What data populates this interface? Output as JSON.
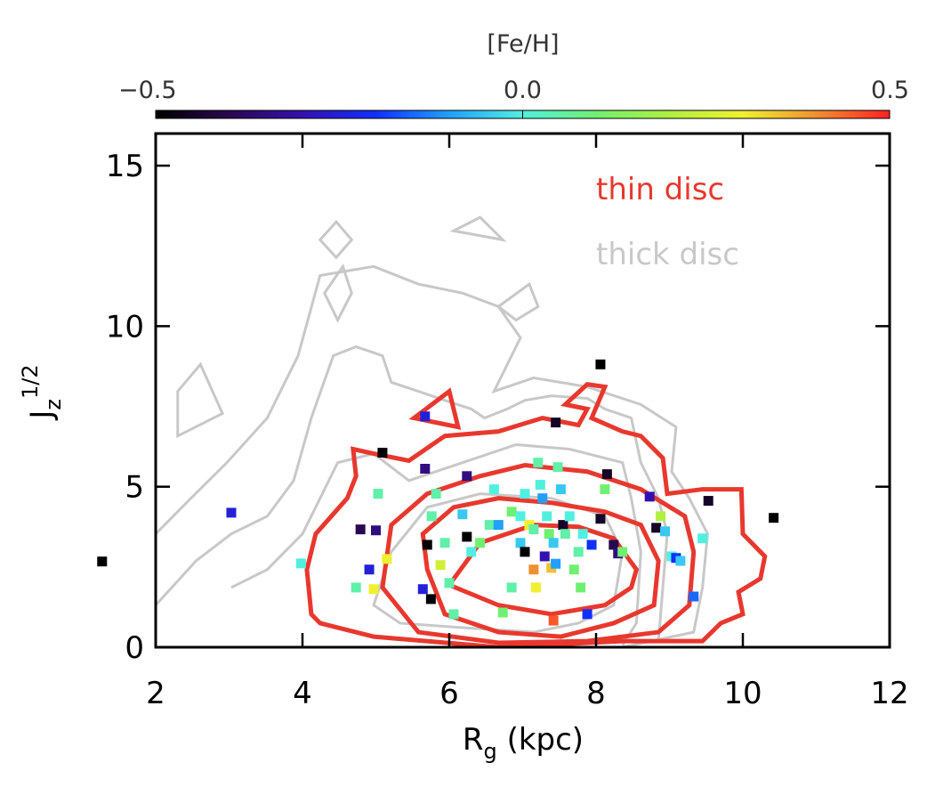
{
  "chart_data": {
    "type": "scatter",
    "xlabel": {
      "base": "R",
      "sub": "g",
      "rest": " (kpc)"
    },
    "ylabel": {
      "base": "J",
      "sub": "z",
      "sup": "1/2"
    },
    "xlim": [
      2,
      12
    ],
    "xticks": [
      2,
      4,
      6,
      8,
      10,
      12
    ],
    "ylim": [
      0,
      16
    ],
    "yticks": [
      0,
      5,
      10,
      15
    ],
    "colorbar": {
      "label": "[Fe/H]",
      "lim": [
        -0.5,
        0.5
      ],
      "ticks": [
        {
          "value": -0.5,
          "label": "−0.5"
        },
        {
          "value": 0,
          "label": "0.0"
        },
        {
          "value": 0.5,
          "label": "0.5"
        }
      ],
      "colormap": [
        "#000000",
        "#2a0850",
        "#3510b0",
        "#1030ff",
        "#20a0ff",
        "#50f0e0",
        "#70f070",
        "#b0f040",
        "#f0f030",
        "#f09030",
        "#ff2020"
      ]
    },
    "series": [
      {
        "name": "thin disc",
        "color": "#e8382e",
        "contours": [
          {
            "closed": true,
            "x": [
              6.0,
              6.42,
              7.15,
              7.76,
              8.24,
              8.55,
              8.48,
              8.12,
              7.39,
              6.67
            ],
            "y": [
              1.94,
              3.25,
              3.81,
              3.75,
              3.39,
              2.42,
              1.86,
              1.31,
              1.03,
              1.31
            ]
          },
          {
            "closed": true,
            "x": [
              5.7,
              5.64,
              6.06,
              6.67,
              7.39,
              8.12,
              8.61,
              8.85,
              8.79,
              8.24,
              7.52,
              6.67,
              5.94
            ],
            "y": [
              2.42,
              3.53,
              4.36,
              4.64,
              4.5,
              4.22,
              3.81,
              2.69,
              1.31,
              0.75,
              0.33,
              0.47,
              1.03
            ]
          },
          {
            "closed": true,
            "x": [
              5.09,
              5.21,
              5.7,
              6.42,
              7.03,
              7.88,
              8.61,
              9.21,
              9.33,
              9.27,
              8.85,
              7.88,
              6.67,
              5.58
            ],
            "y": [
              1.86,
              3.81,
              4.78,
              5.33,
              5.67,
              5.47,
              4.92,
              4.08,
              2.97,
              1.31,
              0.47,
              0.19,
              0.14,
              0.47
            ]
          },
          {
            "closed": true,
            "x": [
              4.12,
              4.06,
              4.18,
              4.61,
              4.73,
              4.69,
              4.97,
              5.45,
              5.94,
              6.67,
              7.27,
              7.76,
              7.88,
              7.58,
              7.88,
              8.12,
              7.94,
              8.36,
              8.61,
              8.91,
              8.97,
              9.45,
              9.98,
              10.0,
              10.3,
              10.24,
              9.94,
              10.0,
              9.7,
              9.45,
              8.36,
              6.67,
              4.97,
              4.24
            ],
            "y": [
              1.03,
              2.42,
              3.53,
              4.64,
              5.33,
              6.17,
              6.03,
              5.81,
              6.58,
              6.72,
              7.14,
              6.92,
              7.42,
              7.56,
              8.19,
              8.11,
              7.14,
              6.72,
              6.58,
              5.89,
              4.78,
              4.92,
              4.92,
              3.53,
              2.83,
              2.14,
              1.72,
              1.03,
              0.75,
              0.19,
              0.19,
              0,
              0.33,
              0.75
            ]
          },
          {
            "closed": true,
            "x": [
              5.52,
              6.0,
              6.12
            ],
            "y": [
              7.14,
              7.97,
              6.86
            ]
          }
        ]
      },
      {
        "name": "thick disc",
        "color": "#c8c8c8",
        "contours": [
          {
            "closed": false,
            "x": [
              2.0,
              2.48,
              2.97,
              3.52,
              3.94,
              4.24,
              4.97,
              5.58,
              6.18,
              6.67,
              6.97,
              6.61,
              7.15,
              7.88,
              8.61,
              9.09,
              9.03,
              9.27,
              9.52,
              9.45,
              9.33,
              8.36
            ],
            "y": [
              3.53,
              4.64,
              5.75,
              7.14,
              9.08,
              11.58,
              11.86,
              11.31,
              11.03,
              10.61,
              9.64,
              7.97,
              8.39,
              8.11,
              7.56,
              6.86,
              5.47,
              4.64,
              3.53,
              1.86,
              0.47,
              0
            ]
          },
          {
            "closed": false,
            "x": [
              2.0,
              2.55,
              3.03,
              3.52,
              3.88,
              4.12,
              4.42,
              4.73,
              5.09,
              5.21,
              5.58,
              5.94,
              6.3,
              6.48,
              6.79,
              7.03,
              7.39,
              7.88,
              8.12,
              8.48,
              8.61,
              8.85,
              8.97,
              8.91,
              8.85
            ],
            "y": [
              1.31,
              2.69,
              3.53,
              4.08,
              5.19,
              7.14,
              9.08,
              9.36,
              9.08,
              8.25,
              7.97,
              7.69,
              7.42,
              7.14,
              7.42,
              7.69,
              7.83,
              7.75,
              7.42,
              7.14,
              5.75,
              4.64,
              3.53,
              1.86,
              0.19
            ]
          },
          {
            "closed": false,
            "x": [
              3.03,
              3.52,
              4.0,
              4.24,
              4.48,
              4.97,
              5.45,
              6.18,
              6.91,
              7.64,
              8.36,
              8.48,
              8.61,
              8.55,
              8.36
            ],
            "y": [
              1.86,
              2.42,
              3.53,
              4.64,
              5.75,
              6.03,
              5.19,
              5.75,
              6.31,
              6.17,
              5.75,
              4.64,
              2.97,
              0.75,
              0.06
            ]
          },
          {
            "closed": true,
            "x": [
              4.97,
              5.21,
              5.7,
              6.42,
              7.39,
              8.12,
              8.36,
              8.24,
              7.76,
              7.15,
              6.18,
              5.33
            ],
            "y": [
              1.31,
              2.97,
              4.36,
              4.78,
              4.64,
              4.08,
              2.97,
              1.31,
              0.75,
              0.47,
              0.61,
              0.75
            ]
          },
          {
            "closed": true,
            "x": [
              2.3,
              2.61,
              2.91,
              2.3
            ],
            "y": [
              7.97,
              8.81,
              7.28,
              6.58
            ]
          },
          {
            "closed": true,
            "x": [
              4.24,
              4.46,
              4.67,
              4.46
            ],
            "y": [
              12.69,
              13.25,
              12.69,
              12.14
            ]
          },
          {
            "closed": true,
            "x": [
              4.3,
              4.55,
              4.67,
              4.48
            ],
            "y": [
              11.03,
              11.86,
              11.03,
              10.19
            ]
          },
          {
            "closed": true,
            "x": [
              6.06,
              6.42,
              6.73
            ],
            "y": [
              12.97,
              13.39,
              12.69
            ]
          },
          {
            "closed": true,
            "x": [
              6.67,
              7.09,
              7.21,
              6.91
            ],
            "y": [
              10.61,
              11.31,
              10.61,
              10.19
            ]
          }
        ]
      }
    ],
    "points": {
      "x": [
        1.27,
        3.03,
        3.98,
        4.79,
        5.0,
        4.91,
        4.73,
        4.97,
        5.09,
        5.03,
        5.15,
        5.67,
        5.67,
        5.64,
        5.75,
        5.7,
        5.76,
        5.82,
        5.88,
        5.94,
        6.0,
        6.06,
        6.18,
        6.24,
        6.24,
        6.3,
        6.42,
        6.55,
        6.61,
        6.67,
        6.73,
        6.85,
        6.85,
        6.97,
        6.97,
        7.03,
        7.03,
        7.09,
        7.15,
        7.15,
        7.18,
        7.21,
        7.24,
        7.27,
        7.3,
        7.33,
        7.36,
        7.39,
        7.42,
        7.45,
        7.45,
        7.48,
        7.52,
        7.42,
        7.55,
        7.58,
        7.64,
        7.7,
        7.76,
        7.79,
        7.82,
        7.88,
        7.94,
        8.06,
        8.06,
        8.12,
        8.15,
        8.24,
        8.3,
        8.36,
        8.73,
        8.82,
        8.88,
        8.94,
        9.03,
        9.09,
        9.15,
        9.33,
        9.45,
        9.53,
        10.42
      ],
      "y": [
        2.67,
        4.19,
        2.61,
        3.67,
        3.64,
        2.42,
        1.86,
        1.81,
        6.06,
        4.78,
        2.75,
        5.56,
        7.19,
        1.81,
        1.5,
        3.19,
        4.08,
        4.78,
        2.56,
        3.25,
        2.0,
        1.03,
        4.14,
        5.33,
        3.44,
        2.97,
        3.25,
        3.81,
        4.92,
        3.81,
        1.08,
        1.86,
        4.22,
        4.08,
        3.25,
        2.97,
        4.78,
        3.81,
        3.67,
        2.42,
        1.86,
        5.75,
        5.06,
        4.64,
        2.83,
        4.08,
        3.53,
        2.47,
        3.25,
        7.0,
        2.6,
        5.61,
        4.92,
        0.83,
        3.81,
        3.53,
        4.08,
        2.42,
        2.97,
        1.86,
        3.53,
        1.03,
        3.19,
        8.81,
        4.0,
        4.92,
        5.39,
        3.19,
        2.92,
        2.97,
        4.69,
        3.72,
        4.08,
        3.61,
        2.83,
        2.78,
        2.69,
        1.58,
        3.39,
        4.56,
        4.03
      ],
      "feh": [
        -0.5,
        -0.25,
        0.0,
        -0.4,
        -0.35,
        -0.25,
        0.05,
        0.3,
        -0.5,
        0.05,
        0.3,
        -0.35,
        -0.25,
        -0.25,
        -0.5,
        -0.5,
        0.05,
        0.05,
        0.25,
        0.05,
        0.05,
        0.05,
        -0.05,
        -0.35,
        -0.5,
        0.0,
        0.1,
        0.05,
        0.0,
        -0.1,
        0.1,
        0.05,
        0.1,
        0.0,
        -0.05,
        -0.5,
        0.0,
        0.3,
        0.05,
        0.4,
        0.3,
        0.05,
        0.0,
        -0.1,
        -0.3,
        0.0,
        0.1,
        0.35,
        -0.05,
        -0.45,
        -0.1,
        0.05,
        -0.05,
        0.45,
        -0.45,
        0.05,
        0.0,
        0.1,
        0.05,
        0.1,
        0.0,
        -0.2,
        -0.2,
        -0.5,
        -0.45,
        0.1,
        -0.45,
        -0.4,
        -0.35,
        0.1,
        -0.3,
        -0.45,
        0.2,
        -0.05,
        0.0,
        -0.2,
        -0.05,
        -0.15,
        0.0,
        -0.45,
        -0.5
      ]
    }
  }
}
